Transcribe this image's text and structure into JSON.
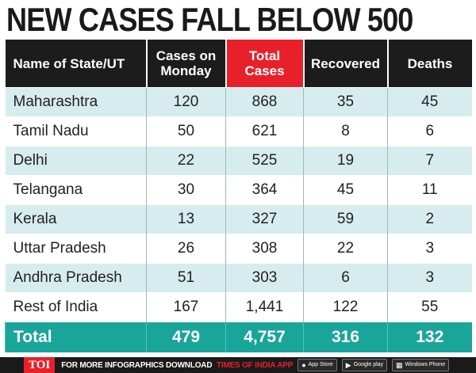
{
  "headline": "NEW CASES FALL BELOW 500",
  "chart_data": {
    "type": "table",
    "title": "NEW CASES FALL BELOW 500",
    "columns": [
      "Name of State/UT",
      "Cases on Monday",
      "Total Cases",
      "Recovered",
      "Deaths"
    ],
    "highlight_column": "Total Cases",
    "rows": [
      {
        "state": "Maharashtra",
        "monday": "120",
        "total": "868",
        "recovered": "35",
        "deaths": "45"
      },
      {
        "state": "Tamil Nadu",
        "monday": "50",
        "total": "621",
        "recovered": "8",
        "deaths": "6"
      },
      {
        "state": "Delhi",
        "monday": "22",
        "total": "525",
        "recovered": "19",
        "deaths": "7"
      },
      {
        "state": "Telangana",
        "monday": "30",
        "total": "364",
        "recovered": "45",
        "deaths": "11"
      },
      {
        "state": "Kerala",
        "monday": "13",
        "total": "327",
        "recovered": "59",
        "deaths": "2"
      },
      {
        "state": "Uttar Pradesh",
        "monday": "26",
        "total": "308",
        "recovered": "22",
        "deaths": "3"
      },
      {
        "state": "Andhra Pradesh",
        "monday": "51",
        "total": "303",
        "recovered": "6",
        "deaths": "3"
      },
      {
        "state": "Rest of India",
        "monday": "167",
        "total": "1,441",
        "recovered": "122",
        "deaths": "55"
      }
    ],
    "total": {
      "label": "Total",
      "monday": "479",
      "total": "4,757",
      "recovered": "316",
      "deaths": "132"
    }
  },
  "colors": {
    "header_bg": "#1c1c1c",
    "highlight_header": "#e8202a",
    "row_alt": "#d7ecee",
    "total_bg": "#1aa59a"
  },
  "footer": {
    "logo": "TOI",
    "text": "FOR MORE INFOGRAPHICS DOWNLOAD",
    "app_name": "TIMES OF INDIA APP",
    "badges": [
      {
        "icon": "apple-icon",
        "label": "App Store"
      },
      {
        "icon": "google-play-icon",
        "label": "Google play"
      },
      {
        "icon": "windows-icon",
        "label": "Windows Phone"
      }
    ]
  }
}
